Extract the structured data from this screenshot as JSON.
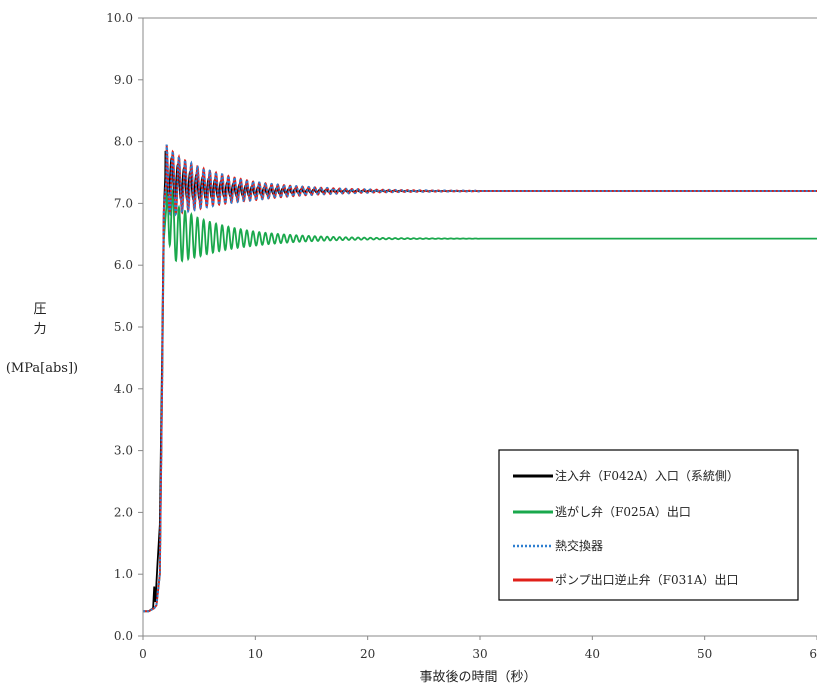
{
  "chart_data": {
    "type": "line",
    "xlabel": "事故後の時間（秒）",
    "ylabel_lines": [
      "圧",
      "力",
      "(MPa[abs])"
    ],
    "xlim": [
      0,
      60
    ],
    "ylim": [
      0,
      10
    ],
    "x_ticks": [
      "0",
      "10",
      "20",
      "30",
      "40",
      "50",
      "60"
    ],
    "y_ticks": [
      "0.0",
      "1.0",
      "2.0",
      "3.0",
      "4.0",
      "5.0",
      "6.0",
      "7.0",
      "8.0",
      "9.0",
      "10.0"
    ],
    "grid": false,
    "legend_position": "bottom-right",
    "series": [
      {
        "name": "注入弁（F042A）入口（系統側）",
        "color": "#000000",
        "style": "solid",
        "x": [
          0,
          0.5,
          0.9,
          1.0,
          1.1,
          1.3,
          1.5,
          1.7,
          1.85,
          2.0,
          3,
          5,
          10,
          20,
          30,
          60
        ],
        "y": [
          0.4,
          0.4,
          0.45,
          0.8,
          0.55,
          1.2,
          1.8,
          4.5,
          6.9,
          7.5,
          7.35,
          7.25,
          7.2,
          7.2,
          7.2,
          7.2
        ],
        "oscillation": {
          "start": 2.0,
          "end": 30,
          "amplitude": 0.35,
          "period": 0.55,
          "decay": 5
        }
      },
      {
        "name": "逃がし弁（F025A）出口",
        "color": "#1aa84c",
        "style": "solid",
        "x": [
          0,
          0.5,
          1.0,
          1.2,
          1.5,
          1.7,
          1.85,
          2.1,
          3,
          5,
          10,
          20,
          30,
          60
        ],
        "y": [
          0.4,
          0.4,
          0.45,
          0.5,
          1.0,
          4.0,
          6.4,
          7.0,
          6.5,
          6.45,
          6.43,
          6.43,
          6.43,
          6.43
        ],
        "oscillation": {
          "start": 2.1,
          "end": 30,
          "amplitude": 0.55,
          "period": 0.55,
          "decay": 5
        }
      },
      {
        "name": "熱交換器",
        "color": "#2e7fd0",
        "style": "dotted",
        "x": [
          0,
          0.5,
          1.0,
          1.2,
          1.5,
          1.7,
          1.85,
          2.1,
          3,
          5,
          10,
          20,
          30,
          60
        ],
        "y": [
          0.4,
          0.4,
          0.45,
          0.5,
          1.0,
          4.0,
          6.9,
          7.4,
          7.3,
          7.25,
          7.2,
          7.2,
          7.2,
          7.2
        ],
        "oscillation": {
          "start": 2.1,
          "end": 30,
          "amplitude": 0.55,
          "period": 0.55,
          "decay": 6
        }
      },
      {
        "name": "ポンプ出口逆止弁（F031A）出口",
        "color": "#e0201a",
        "style": "solid",
        "x": [
          0,
          0.5,
          1.0,
          1.2,
          1.5,
          1.7,
          1.85,
          2.1,
          3,
          5,
          10,
          20,
          30,
          60
        ],
        "y": [
          0.4,
          0.4,
          0.45,
          0.5,
          1.0,
          4.0,
          6.9,
          7.4,
          7.3,
          7.25,
          7.2,
          7.2,
          7.2,
          7.2
        ],
        "oscillation": {
          "start": 2.1,
          "end": 30,
          "amplitude": 0.55,
          "period": 0.55,
          "decay": 6
        }
      }
    ]
  }
}
